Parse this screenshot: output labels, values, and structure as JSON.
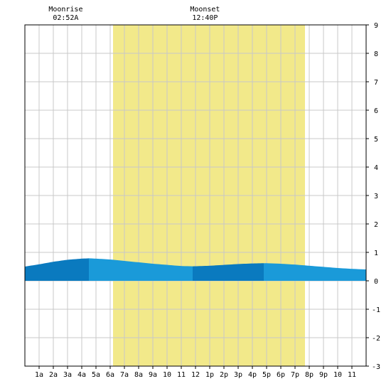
{
  "moon": {
    "rise_label": "Moonrise",
    "rise_time": "02:52A",
    "set_label": "Moonset",
    "set_time": "12:40P"
  },
  "chart_data": {
    "type": "area",
    "title": "",
    "xlabel": "",
    "ylabel": "",
    "x_range_hours": [
      0,
      24
    ],
    "ylim": [
      -3,
      9
    ],
    "grid": true,
    "x_tick_labels": [
      "1a",
      "2a",
      "3a",
      "4a",
      "5a",
      "6a",
      "7a",
      "8a",
      "9a",
      "10",
      "11",
      "12",
      "1p",
      "2p",
      "3p",
      "4p",
      "5p",
      "6p",
      "7p",
      "8p",
      "9p",
      "10",
      "11"
    ],
    "y_ticks": [
      -3,
      -2,
      -1,
      0,
      1,
      2,
      3,
      4,
      5,
      6,
      7,
      8,
      9
    ],
    "daylight_hours": [
      6.2,
      19.7
    ],
    "moonrise_hour": 2.87,
    "moonset_hour": 12.67,
    "tide_hours": [
      0,
      1,
      2,
      3,
      4,
      4.5,
      5,
      6,
      7,
      8,
      9,
      10,
      11,
      11.8,
      12.5,
      13,
      14,
      15,
      16,
      16.8,
      17.5,
      18,
      19,
      20,
      21,
      22,
      23,
      24
    ],
    "tide_heights_ft": [
      0.5,
      0.58,
      0.67,
      0.74,
      0.78,
      0.79,
      0.78,
      0.75,
      0.7,
      0.65,
      0.6,
      0.56,
      0.52,
      0.51,
      0.52,
      0.53,
      0.56,
      0.59,
      0.61,
      0.62,
      0.61,
      0.6,
      0.57,
      0.53,
      0.49,
      0.45,
      0.42,
      0.4
    ],
    "shade_boundaries_hours": [
      0,
      4.5,
      11.8,
      16.8,
      24
    ],
    "colors": {
      "daylight": "#f2e98a",
      "tide_dark": "#0a7abf",
      "tide_light": "#1a9ad9",
      "grid": "#c8c8c8",
      "axis": "#000000"
    }
  }
}
